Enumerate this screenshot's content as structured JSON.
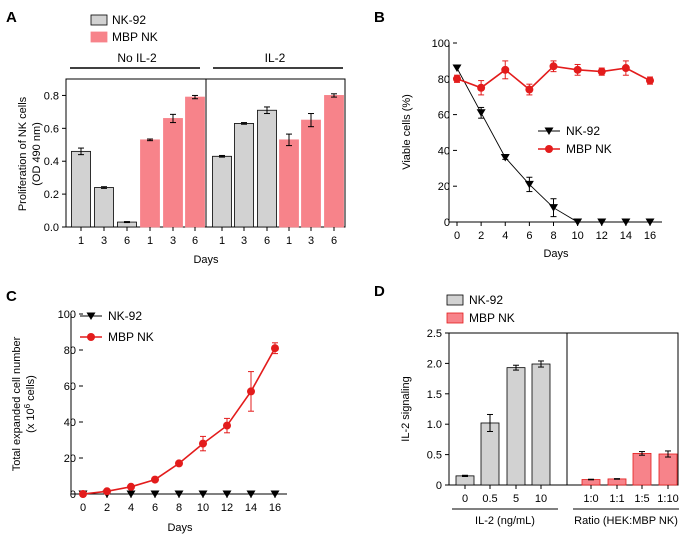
{
  "colors": {
    "gray": "#d2d2d2",
    "red_bar": "#f7838a",
    "red_line": "#e31c1c",
    "black": "#000000"
  },
  "chart_data": [
    {
      "panel": "A",
      "type": "bar",
      "ylabel_line1": "Proliferation of NK cells",
      "ylabel_line2": "(OD 490 nm)",
      "xlabel": "Days",
      "ylim": [
        0,
        0.9
      ],
      "yticks": [
        "0.0",
        "0.2",
        "0.4",
        "0.6",
        "0.8"
      ],
      "legend": [
        "NK-92",
        "MBP NK"
      ],
      "groups": [
        {
          "label": "No IL-2",
          "bars": [
            {
              "cat": "1",
              "series": "NK-92",
              "value": 0.46,
              "err": 0.02
            },
            {
              "cat": "3",
              "series": "NK-92",
              "value": 0.24,
              "err": 0.005
            },
            {
              "cat": "6",
              "series": "NK-92",
              "value": 0.03,
              "err": 0.003
            },
            {
              "cat": "1",
              "series": "MBP NK",
              "value": 0.53,
              "err": 0.005
            },
            {
              "cat": "3",
              "series": "MBP NK",
              "value": 0.66,
              "err": 0.025
            },
            {
              "cat": "6",
              "series": "MBP NK",
              "value": 0.79,
              "err": 0.01
            }
          ]
        },
        {
          "label": "IL-2",
          "bars": [
            {
              "cat": "1",
              "series": "NK-92",
              "value": 0.43,
              "err": 0.005
            },
            {
              "cat": "3",
              "series": "NK-92",
              "value": 0.63,
              "err": 0.005
            },
            {
              "cat": "6",
              "series": "NK-92",
              "value": 0.71,
              "err": 0.02
            },
            {
              "cat": "1",
              "series": "MBP NK",
              "value": 0.53,
              "err": 0.035
            },
            {
              "cat": "3",
              "series": "MBP NK",
              "value": 0.65,
              "err": 0.04
            },
            {
              "cat": "6",
              "series": "MBP NK",
              "value": 0.8,
              "err": 0.01
            }
          ]
        }
      ]
    },
    {
      "panel": "B",
      "type": "line",
      "ylabel": "Viable cells (%)",
      "xlabel": "Days",
      "xlim": [
        0,
        16
      ],
      "ylim": [
        0,
        100
      ],
      "xticks": [
        0,
        2,
        4,
        6,
        8,
        10,
        12,
        14,
        16
      ],
      "yticks": [
        0,
        20,
        40,
        60,
        80,
        100
      ],
      "series": [
        {
          "name": "NK-92",
          "marker": "triangle-down",
          "x": [
            0,
            2,
            4,
            6,
            8,
            10,
            12,
            14,
            16
          ],
          "y": [
            86,
            61,
            36,
            21,
            8,
            0,
            0,
            0,
            0
          ],
          "err": [
            0,
            3,
            1,
            4,
            5,
            0,
            0,
            0,
            0
          ]
        },
        {
          "name": "MBP NK",
          "marker": "circle",
          "x": [
            0,
            2,
            4,
            6,
            8,
            10,
            12,
            14,
            16
          ],
          "y": [
            80,
            75,
            85,
            74,
            87,
            85,
            84,
            86,
            79
          ],
          "err": [
            2,
            4,
            5,
            3,
            3,
            3,
            2,
            4,
            2
          ]
        }
      ]
    },
    {
      "panel": "C",
      "type": "line",
      "ylabel_line1": "Total expanded cell number",
      "ylabel_line2": "(x 10",
      "ylabel_sup": "6",
      "ylabel_line2_end": " cells)",
      "xlabel": "Days",
      "xlim": [
        0,
        16
      ],
      "ylim": [
        0,
        100
      ],
      "xticks": [
        0,
        2,
        4,
        6,
        8,
        10,
        12,
        14,
        16
      ],
      "yticks": [
        0,
        20,
        40,
        60,
        80,
        100
      ],
      "series": [
        {
          "name": "NK-92",
          "marker": "triangle-down",
          "x": [
            0,
            2,
            4,
            6,
            8,
            10,
            12,
            14,
            16
          ],
          "y": [
            0,
            0,
            0,
            0,
            0,
            0,
            0,
            0,
            0
          ],
          "err": [
            0,
            0,
            0,
            0,
            0,
            0,
            0,
            0,
            0
          ]
        },
        {
          "name": "MBP NK",
          "marker": "circle",
          "x": [
            0,
            2,
            4,
            6,
            8,
            10,
            12,
            14,
            16
          ],
          "y": [
            0,
            1.5,
            4,
            8,
            17,
            28,
            38,
            57,
            81
          ],
          "err": [
            0,
            0.5,
            1,
            1,
            1,
            4,
            4,
            11,
            3
          ]
        }
      ]
    },
    {
      "panel": "D",
      "type": "bar",
      "ylabel": "IL-2 signaling",
      "ylim": [
        0,
        2.5
      ],
      "yticks": [
        "0",
        "0.5",
        "1.0",
        "1.5",
        "2.0",
        "2.5"
      ],
      "legend": [
        "NK-92",
        "MBP NK"
      ],
      "groups": [
        {
          "xlabel": "IL-2 (ng/mL)",
          "bars": [
            {
              "cat": "0",
              "series": "NK-92",
              "value": 0.15,
              "err": 0.01
            },
            {
              "cat": "0.5",
              "series": "NK-92",
              "value": 1.02,
              "err": 0.14
            },
            {
              "cat": "5",
              "series": "NK-92",
              "value": 1.93,
              "err": 0.04
            },
            {
              "cat": "10",
              "series": "NK-92",
              "value": 1.99,
              "err": 0.05
            }
          ]
        },
        {
          "xlabel": "Ratio (HEK:MBP NK)",
          "bars": [
            {
              "cat": "1:0",
              "series": "MBP NK",
              "value": 0.09,
              "err": 0.005
            },
            {
              "cat": "1:1",
              "series": "MBP NK",
              "value": 0.1,
              "err": 0.005
            },
            {
              "cat": "1:5",
              "series": "MBP NK",
              "value": 0.52,
              "err": 0.03
            },
            {
              "cat": "1:10",
              "series": "MBP NK",
              "value": 0.51,
              "err": 0.05
            }
          ]
        }
      ]
    }
  ]
}
